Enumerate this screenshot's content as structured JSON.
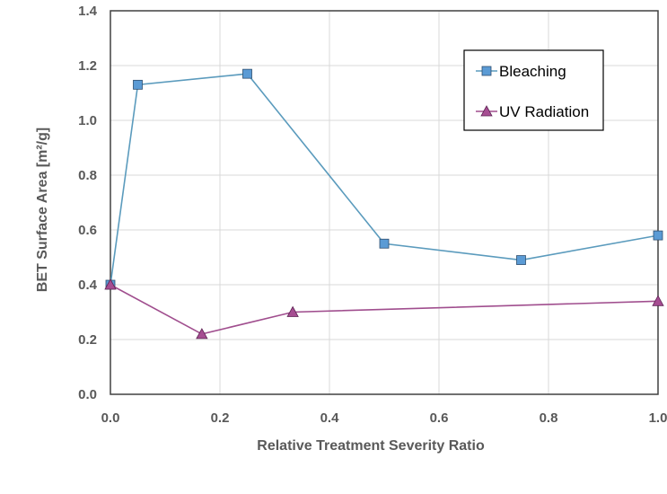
{
  "chart_data": {
    "type": "line",
    "title": "",
    "xlabel": "Relative Treatment Severity Ratio",
    "ylabel": "BET Surface Area [m²/g]",
    "xlim": [
      0.0,
      1.0
    ],
    "ylim": [
      0.0,
      1.4
    ],
    "xticks": [
      0.0,
      0.2,
      0.4,
      0.6,
      0.8,
      1.0
    ],
    "yticks": [
      0.0,
      0.2,
      0.4,
      0.6,
      0.8,
      1.0,
      1.2,
      1.4
    ],
    "xtick_labels": [
      "0.0",
      "0.2",
      "0.4",
      "0.6",
      "0.8",
      "1.0"
    ],
    "ytick_labels": [
      "0.0",
      "0.2",
      "0.4",
      "0.6",
      "0.8",
      "1.0",
      "1.2",
      "1.4"
    ],
    "grid": true,
    "legend_position": "top-right",
    "series": [
      {
        "name": "Bleaching",
        "marker": "square",
        "line_color": "#5B9BBD",
        "marker_color": "#5B9BD5",
        "x": [
          0.0,
          0.05,
          0.25,
          0.5,
          0.75,
          1.0
        ],
        "y": [
          0.4,
          1.13,
          1.17,
          0.55,
          0.49,
          0.58
        ]
      },
      {
        "name": "UV Radiation",
        "marker": "triangle",
        "line_color": "#A04E8E",
        "marker_color": "#A64D92",
        "x": [
          0.0,
          0.167,
          0.333,
          1.0
        ],
        "y": [
          0.4,
          0.22,
          0.3,
          0.34
        ]
      }
    ]
  }
}
